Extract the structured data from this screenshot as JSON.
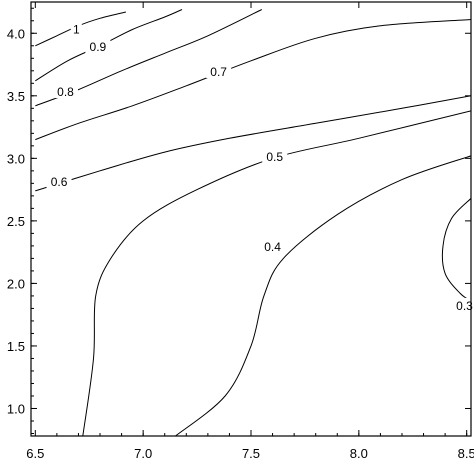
{
  "chart_data": {
    "type": "contour",
    "title": "",
    "xlabel": "",
    "ylabel": "",
    "xlim": [
      6.48,
      8.52
    ],
    "ylim": [
      0.78,
      4.25
    ],
    "grid": false,
    "x_ticks": [
      6.5,
      7.0,
      7.5,
      8.0,
      8.5
    ],
    "x_tick_labels": [
      "6.5",
      "7.0",
      "7.5",
      "8.0",
      "8.5"
    ],
    "y_ticks": [
      1.0,
      1.5,
      2.0,
      2.5,
      3.0,
      3.5,
      4.0
    ],
    "y_tick_labels": [
      "1.0",
      "1.5",
      "2.0",
      "2.5",
      "3.0",
      "3.5",
      "4.0"
    ],
    "contours": [
      {
        "level": "1",
        "points": [
          [
            6.5,
            3.9
          ],
          [
            6.6,
            3.98
          ],
          [
            6.7,
            4.06
          ],
          [
            6.8,
            4.12
          ],
          [
            6.92,
            4.17
          ]
        ],
        "label_at": [
          6.69,
          4.03
        ]
      },
      {
        "level": "0.9",
        "points": [
          [
            6.5,
            3.62
          ],
          [
            6.65,
            3.78
          ],
          [
            6.8,
            3.9
          ],
          [
            6.95,
            4.03
          ],
          [
            7.1,
            4.13
          ],
          [
            7.18,
            4.19
          ]
        ],
        "label_at": [
          6.79,
          3.89
        ]
      },
      {
        "level": "0.8",
        "points": [
          [
            6.5,
            3.42
          ],
          [
            6.7,
            3.55
          ],
          [
            6.9,
            3.7
          ],
          [
            7.1,
            3.84
          ],
          [
            7.3,
            3.98
          ],
          [
            7.55,
            4.19
          ]
        ],
        "label_at": [
          6.64,
          3.53
        ]
      },
      {
        "level": "0.7",
        "points": [
          [
            6.5,
            3.15
          ],
          [
            6.7,
            3.28
          ],
          [
            6.95,
            3.42
          ],
          [
            7.2,
            3.58
          ],
          [
            7.5,
            3.78
          ],
          [
            7.8,
            3.96
          ],
          [
            8.1,
            4.06
          ],
          [
            8.52,
            4.11
          ]
        ],
        "label_at": [
          7.35,
          3.69
        ]
      },
      {
        "level": "0.6",
        "points": [
          [
            6.5,
            2.74
          ],
          [
            6.8,
            2.9
          ],
          [
            7.1,
            3.05
          ],
          [
            7.4,
            3.16
          ],
          [
            7.8,
            3.28
          ],
          [
            8.2,
            3.4
          ],
          [
            8.52,
            3.5
          ]
        ],
        "label_at": [
          6.61,
          2.81
        ]
      },
      {
        "level": "0.5",
        "points": [
          [
            6.72,
            0.78
          ],
          [
            6.77,
            1.4
          ],
          [
            6.78,
            1.9
          ],
          [
            6.85,
            2.2
          ],
          [
            7.0,
            2.5
          ],
          [
            7.25,
            2.75
          ],
          [
            7.6,
            3.0
          ],
          [
            8.0,
            3.16
          ],
          [
            8.52,
            3.38
          ]
        ],
        "label_at": [
          7.61,
          3.01
        ]
      },
      {
        "level": "0.4",
        "points": [
          [
            7.15,
            0.78
          ],
          [
            7.38,
            1.1
          ],
          [
            7.5,
            1.5
          ],
          [
            7.56,
            1.9
          ],
          [
            7.65,
            2.2
          ],
          [
            7.9,
            2.55
          ],
          [
            8.2,
            2.83
          ],
          [
            8.52,
            3.02
          ]
        ],
        "label_at": [
          7.6,
          2.29
        ]
      },
      {
        "level": "0.3",
        "points": [
          [
            8.52,
            2.68
          ],
          [
            8.43,
            2.52
          ],
          [
            8.39,
            2.3
          ],
          [
            8.4,
            2.08
          ],
          [
            8.47,
            1.92
          ],
          [
            8.52,
            1.86
          ]
        ],
        "label_at": [
          8.49,
          1.82
        ]
      }
    ]
  }
}
